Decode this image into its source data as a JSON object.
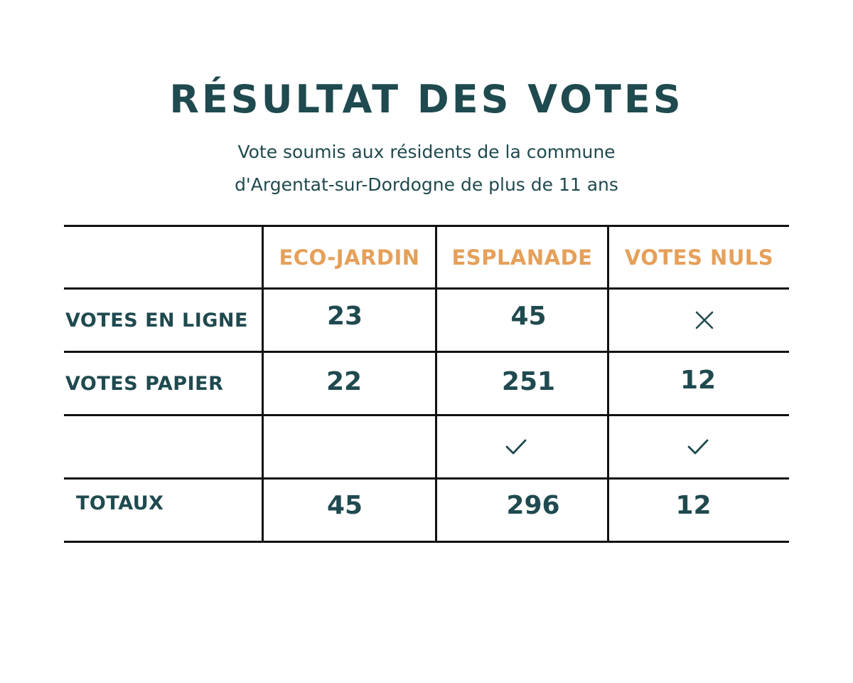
{
  "title": "RÉSULTAT DES VOTES",
  "subtitle": {
    "line1": "Vote soumis aux résidents de la commune",
    "line2": "d'Argentat-sur-Dordogne de plus de 11 ans"
  },
  "table": {
    "headers": [
      "ECO-JARDIN",
      "ESPLANADE",
      "VOTES NULS"
    ],
    "rows": [
      {
        "label": "VOTES EN LIGNE",
        "values": [
          "23",
          "45",
          ""
        ]
      },
      {
        "label": "VOTES PAPIER",
        "values": [
          "22",
          "251",
          "12"
        ]
      },
      {
        "label": "",
        "values": [
          "",
          "",
          ""
        ]
      },
      {
        "label": "TOTAUX",
        "values": [
          "45",
          "296",
          "12"
        ]
      }
    ],
    "icons": {
      "online_nuls": "cross-icon",
      "check_esplanade": "checkmark-icon",
      "check_nuls": "checkmark-icon"
    }
  },
  "colors": {
    "primary": "#1f4a4f",
    "accent": "#e5a05a",
    "rule": "#111111"
  }
}
